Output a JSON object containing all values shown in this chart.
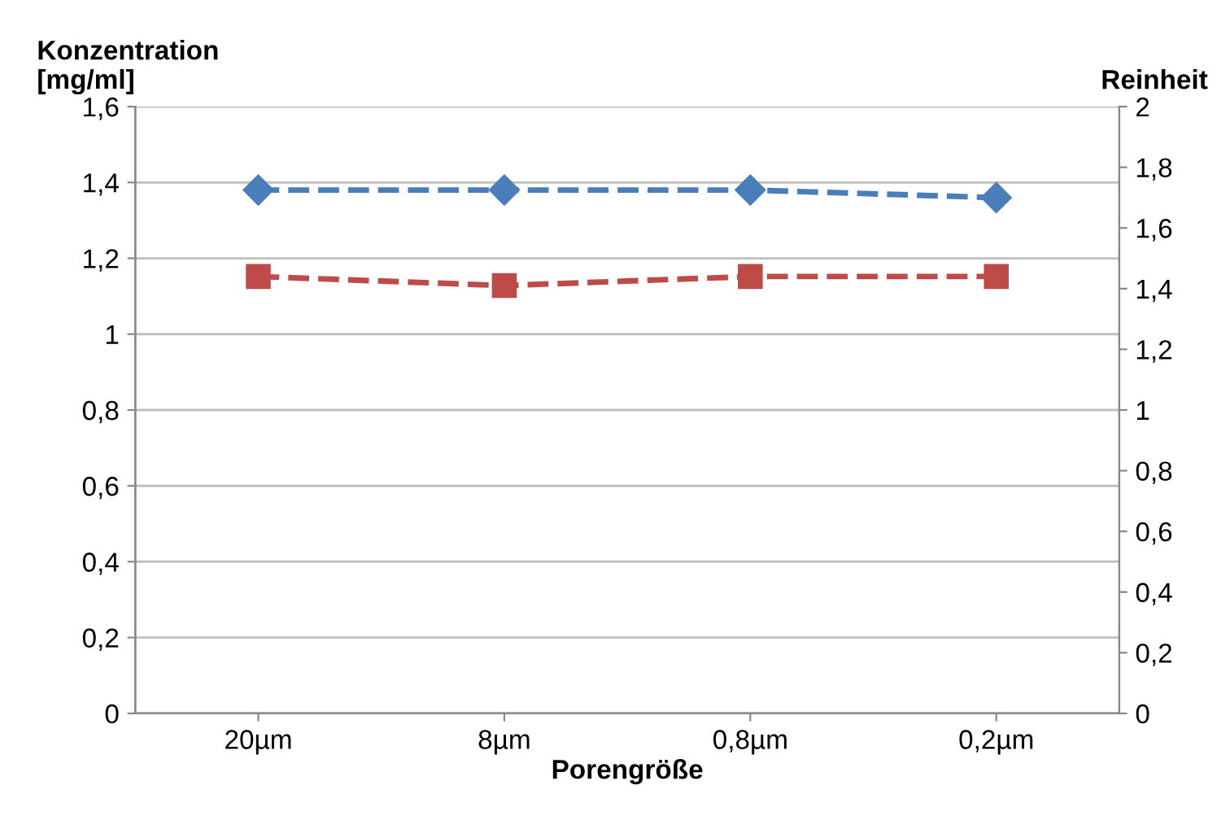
{
  "chart_data": {
    "type": "line",
    "xlabel": "Porengröße",
    "ylabel": "Konzentration\n[mg/ml]",
    "y2label": "Reinheit",
    "categories": [
      "20µm",
      "8µm",
      "0,8µm",
      "0,2µm"
    ],
    "series": [
      {
        "color": "#4a7ebb",
        "values": [
          1.38,
          1.38,
          1.38,
          1.36
        ],
        "marker": "diamond"
      },
      {
        "color": "#be4b48",
        "values": [
          1.44,
          1.41,
          1.44,
          1.44
        ],
        "marker": "square",
        "axis": "y2"
      }
    ],
    "ylim": [
      0,
      1.6
    ],
    "yticks": [
      0,
      {
        "value": 0.2,
        "label": "0,2"
      },
      {
        "value": 0.4,
        "label": "0,4"
      },
      {
        "value": 0.6,
        "label": "0,6"
      },
      {
        "value": 0.8,
        "label": "0,8"
      },
      1,
      {
        "value": 1.2,
        "label": "1,2"
      },
      {
        "value": 1.4,
        "label": "1,4"
      },
      {
        "value": 1.6,
        "label": "1,6"
      }
    ],
    "y2lim": [
      0,
      2
    ],
    "y2ticks": [
      0,
      {
        "value": 0.2,
        "label": "0,2"
      },
      {
        "value": 0.4,
        "label": "0,4"
      },
      {
        "value": 0.6,
        "label": "0,6"
      },
      {
        "value": 0.8,
        "label": "0,8"
      },
      1,
      {
        "value": 1.2,
        "label": "1,2"
      },
      {
        "value": 1.4,
        "label": "1,4"
      },
      {
        "value": 1.6,
        "label": "1,6"
      },
      {
        "value": 1.8,
        "label": "1,8"
      },
      2
    ],
    "grid": "y",
    "line_style": "dashed",
    "legend": false
  }
}
